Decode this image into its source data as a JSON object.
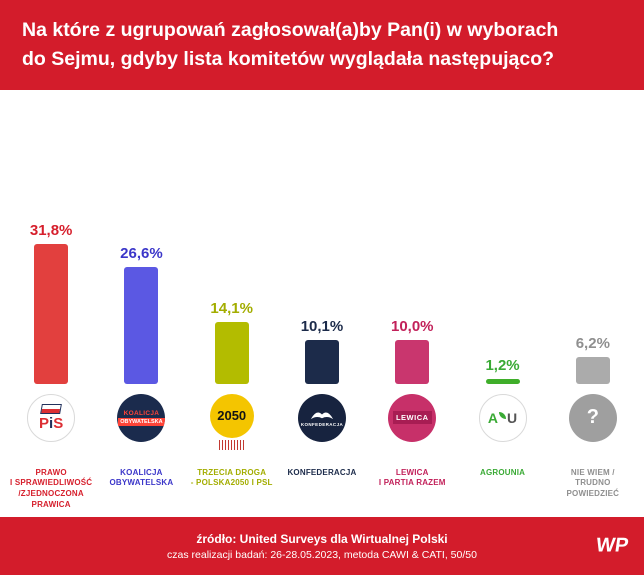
{
  "header": {
    "line1": "Na które z ugrupowań zagłosował(a)by Pan(i) w wyborach",
    "line2": "do Sejmu, gdyby lista komitetów wyglądała następująco?"
  },
  "chart_data": {
    "type": "bar",
    "title": "Na które z ugrupowań zagłosował(a)by Pan(i) w wyborach do Sejmu, gdyby lista komitetów wyglądała następująco?",
    "categories": [
      "Prawo i Sprawiedliwość / Zjednoczona Prawica",
      "Koalicja Obywatelska",
      "Trzecia Droga - Polska2050 i PSL",
      "Konfederacja",
      "Lewica i Partia Razem",
      "Agrounia",
      "Nie wiem / trudno powiedzieć"
    ],
    "values": [
      31.8,
      26.6,
      14.1,
      10.1,
      10.0,
      1.2,
      6.2
    ],
    "value_labels": [
      "31,8%",
      "26,6%",
      "14,1%",
      "10,1%",
      "10,0%",
      "1,2%",
      "6,2%"
    ],
    "unit": "%",
    "ylim": [
      0,
      35
    ],
    "grid": false,
    "legend": false
  },
  "parties": [
    {
      "key": "pis",
      "value": 31.8,
      "value_label": "31,8%",
      "bar_color": "#e2403e",
      "text_color": "#d61f2c",
      "name_lines": [
        "PRAWO",
        "I SPRAWIEDLIWOŚĆ",
        "/ZJEDNOCZONA",
        "PRAWICA"
      ],
      "logo": "pis",
      "logo_text": "PiS"
    },
    {
      "key": "ko",
      "value": 26.6,
      "value_label": "26,6%",
      "bar_color": "#5b58e3",
      "text_color": "#3b36c9",
      "name_lines": [
        "KOALICJA",
        "OBYWATELSKA"
      ],
      "logo": "ko",
      "logo_text": "KOALICJA",
      "logo_subtext": "OBYWATELSKA"
    },
    {
      "key": "trzecia-droga",
      "value": 14.1,
      "value_label": "14,1%",
      "bar_color": "#b3bc00",
      "text_color": "#a3ad00",
      "name_lines": [
        "TRZECIA DROGA",
        "- POLSKA2050 I PSL"
      ],
      "logo": "td",
      "logo_text": "2050"
    },
    {
      "key": "konfederacja",
      "value": 10.1,
      "value_label": "10,1%",
      "bar_color": "#1c2b4a",
      "text_color": "#1c2b4a",
      "name_lines": [
        "KONFEDERACJA"
      ],
      "logo": "konfederacja",
      "logo_text": "KONFEDERACJA"
    },
    {
      "key": "lewica",
      "value": 10.0,
      "value_label": "10,0%",
      "bar_color": "#c9366e",
      "text_color": "#c2215a",
      "name_lines": [
        "LEWICA",
        "I PARTIA RAZEM"
      ],
      "logo": "lewica",
      "logo_text": "LEWICA"
    },
    {
      "key": "agrounia",
      "value": 1.2,
      "value_label": "1,2%",
      "bar_color": "#3fae2a",
      "text_color": "#3aaa35",
      "name_lines": [
        "AGROUNIA"
      ],
      "logo": "agrounia",
      "logo_text": "AU"
    },
    {
      "key": "nie-wiem",
      "value": 6.2,
      "value_label": "6,2%",
      "bar_color": "#ababab",
      "text_color": "#8f8f8f",
      "name_lines": [
        "NIE WIEM /",
        "TRUDNO",
        "POWIEDZIEĆ"
      ],
      "logo": "unknown",
      "logo_text": "?"
    }
  ],
  "footer": {
    "line1": "źródło: United Surveys dla Wirtualnej Polski",
    "line2": "czas realizacji badań: 26-28.05.2023, metoda CAWI & CATI, 50/50",
    "wp_logo": "WP"
  }
}
